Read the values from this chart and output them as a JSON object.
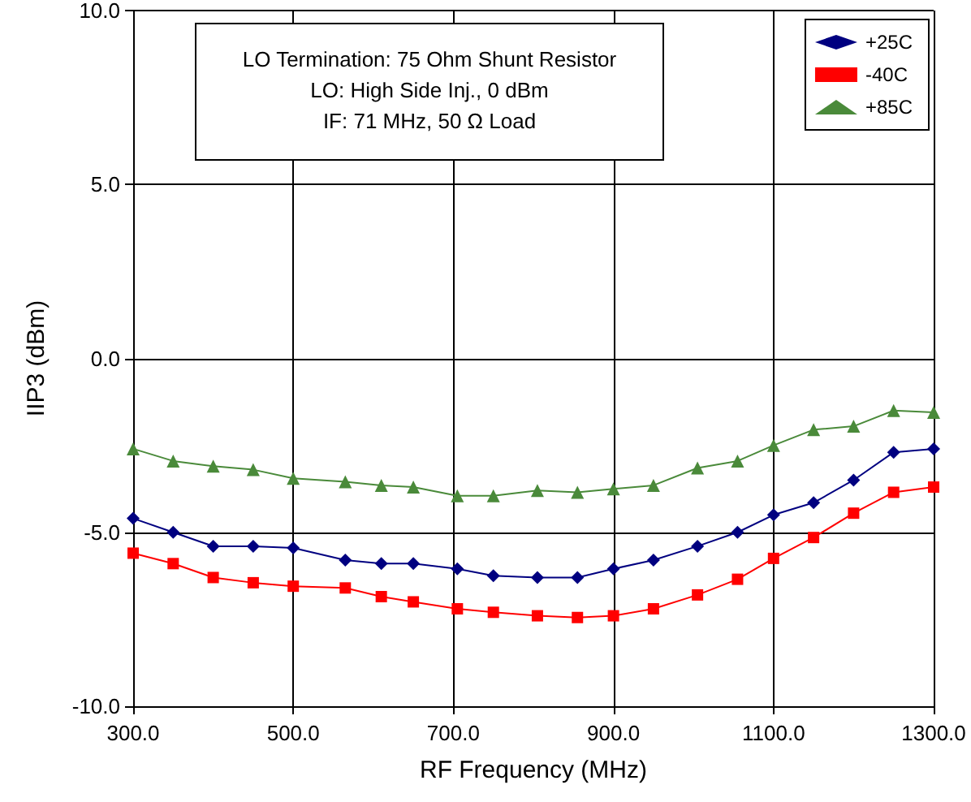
{
  "chart_data": {
    "type": "line",
    "xlabel": "RF Frequency (MHz)",
    "ylabel": "IIP3 (dBm)",
    "annotations": [
      "LO Termination: 75 Ohm Shunt Resistor",
      "LO: High Side Inj., 0 dBm",
      "IF: 71 MHz, 50 Ω Load"
    ],
    "x": [
      300,
      350,
      400,
      450,
      500,
      565,
      610,
      650,
      705,
      750,
      805,
      855,
      900,
      950,
      1005,
      1055,
      1100,
      1150,
      1200,
      1250,
      1300
    ],
    "series": [
      {
        "name": "+25C",
        "color": "#000080",
        "marker": "diamond",
        "values": [
          -4.6,
          -5.0,
          -5.4,
          -5.4,
          -5.45,
          -5.8,
          -5.9,
          -5.9,
          -6.05,
          -6.25,
          -6.3,
          -6.3,
          -6.05,
          -5.8,
          -5.4,
          -5.0,
          -4.5,
          -4.15,
          -3.5,
          -2.7,
          -2.6
        ]
      },
      {
        "name": "-40C",
        "color": "#ff0000",
        "marker": "square",
        "values": [
          -5.6,
          -5.9,
          -6.3,
          -6.45,
          -6.55,
          -6.6,
          -6.85,
          -7.0,
          -7.2,
          -7.3,
          -7.4,
          -7.45,
          -7.4,
          -7.2,
          -6.8,
          -6.35,
          -5.75,
          -5.15,
          -4.45,
          -3.85,
          -3.7
        ]
      },
      {
        "name": "+85C",
        "color": "#4a8a3a",
        "marker": "triangle",
        "values": [
          -2.6,
          -2.95,
          -3.1,
          -3.2,
          -3.45,
          -3.55,
          -3.65,
          -3.7,
          -3.95,
          -3.95,
          -3.8,
          -3.85,
          -3.75,
          -3.65,
          -3.15,
          -2.95,
          -2.5,
          -2.05,
          -1.95,
          -1.5,
          -1.55
        ]
      }
    ],
    "xlim": [
      300,
      1300
    ],
    "xticks": [
      {
        "value": 300,
        "label": "300.0"
      },
      {
        "value": 500,
        "label": "500.0"
      },
      {
        "value": 700,
        "label": "700.0"
      },
      {
        "value": 900,
        "label": "900.0"
      },
      {
        "value": 1100,
        "label": "1100.0"
      },
      {
        "value": 1300,
        "label": "1300.0"
      }
    ],
    "ylim": [
      -10,
      10
    ],
    "yticks": [
      {
        "value": -10,
        "label": "-10.0"
      },
      {
        "value": -5,
        "label": "-5.0"
      },
      {
        "value": 0,
        "label": "0.0"
      },
      {
        "value": 5,
        "label": "5.0"
      },
      {
        "value": 10,
        "label": "10.0"
      }
    ],
    "grid": true,
    "legend": "top right",
    "line_style": "solid"
  }
}
